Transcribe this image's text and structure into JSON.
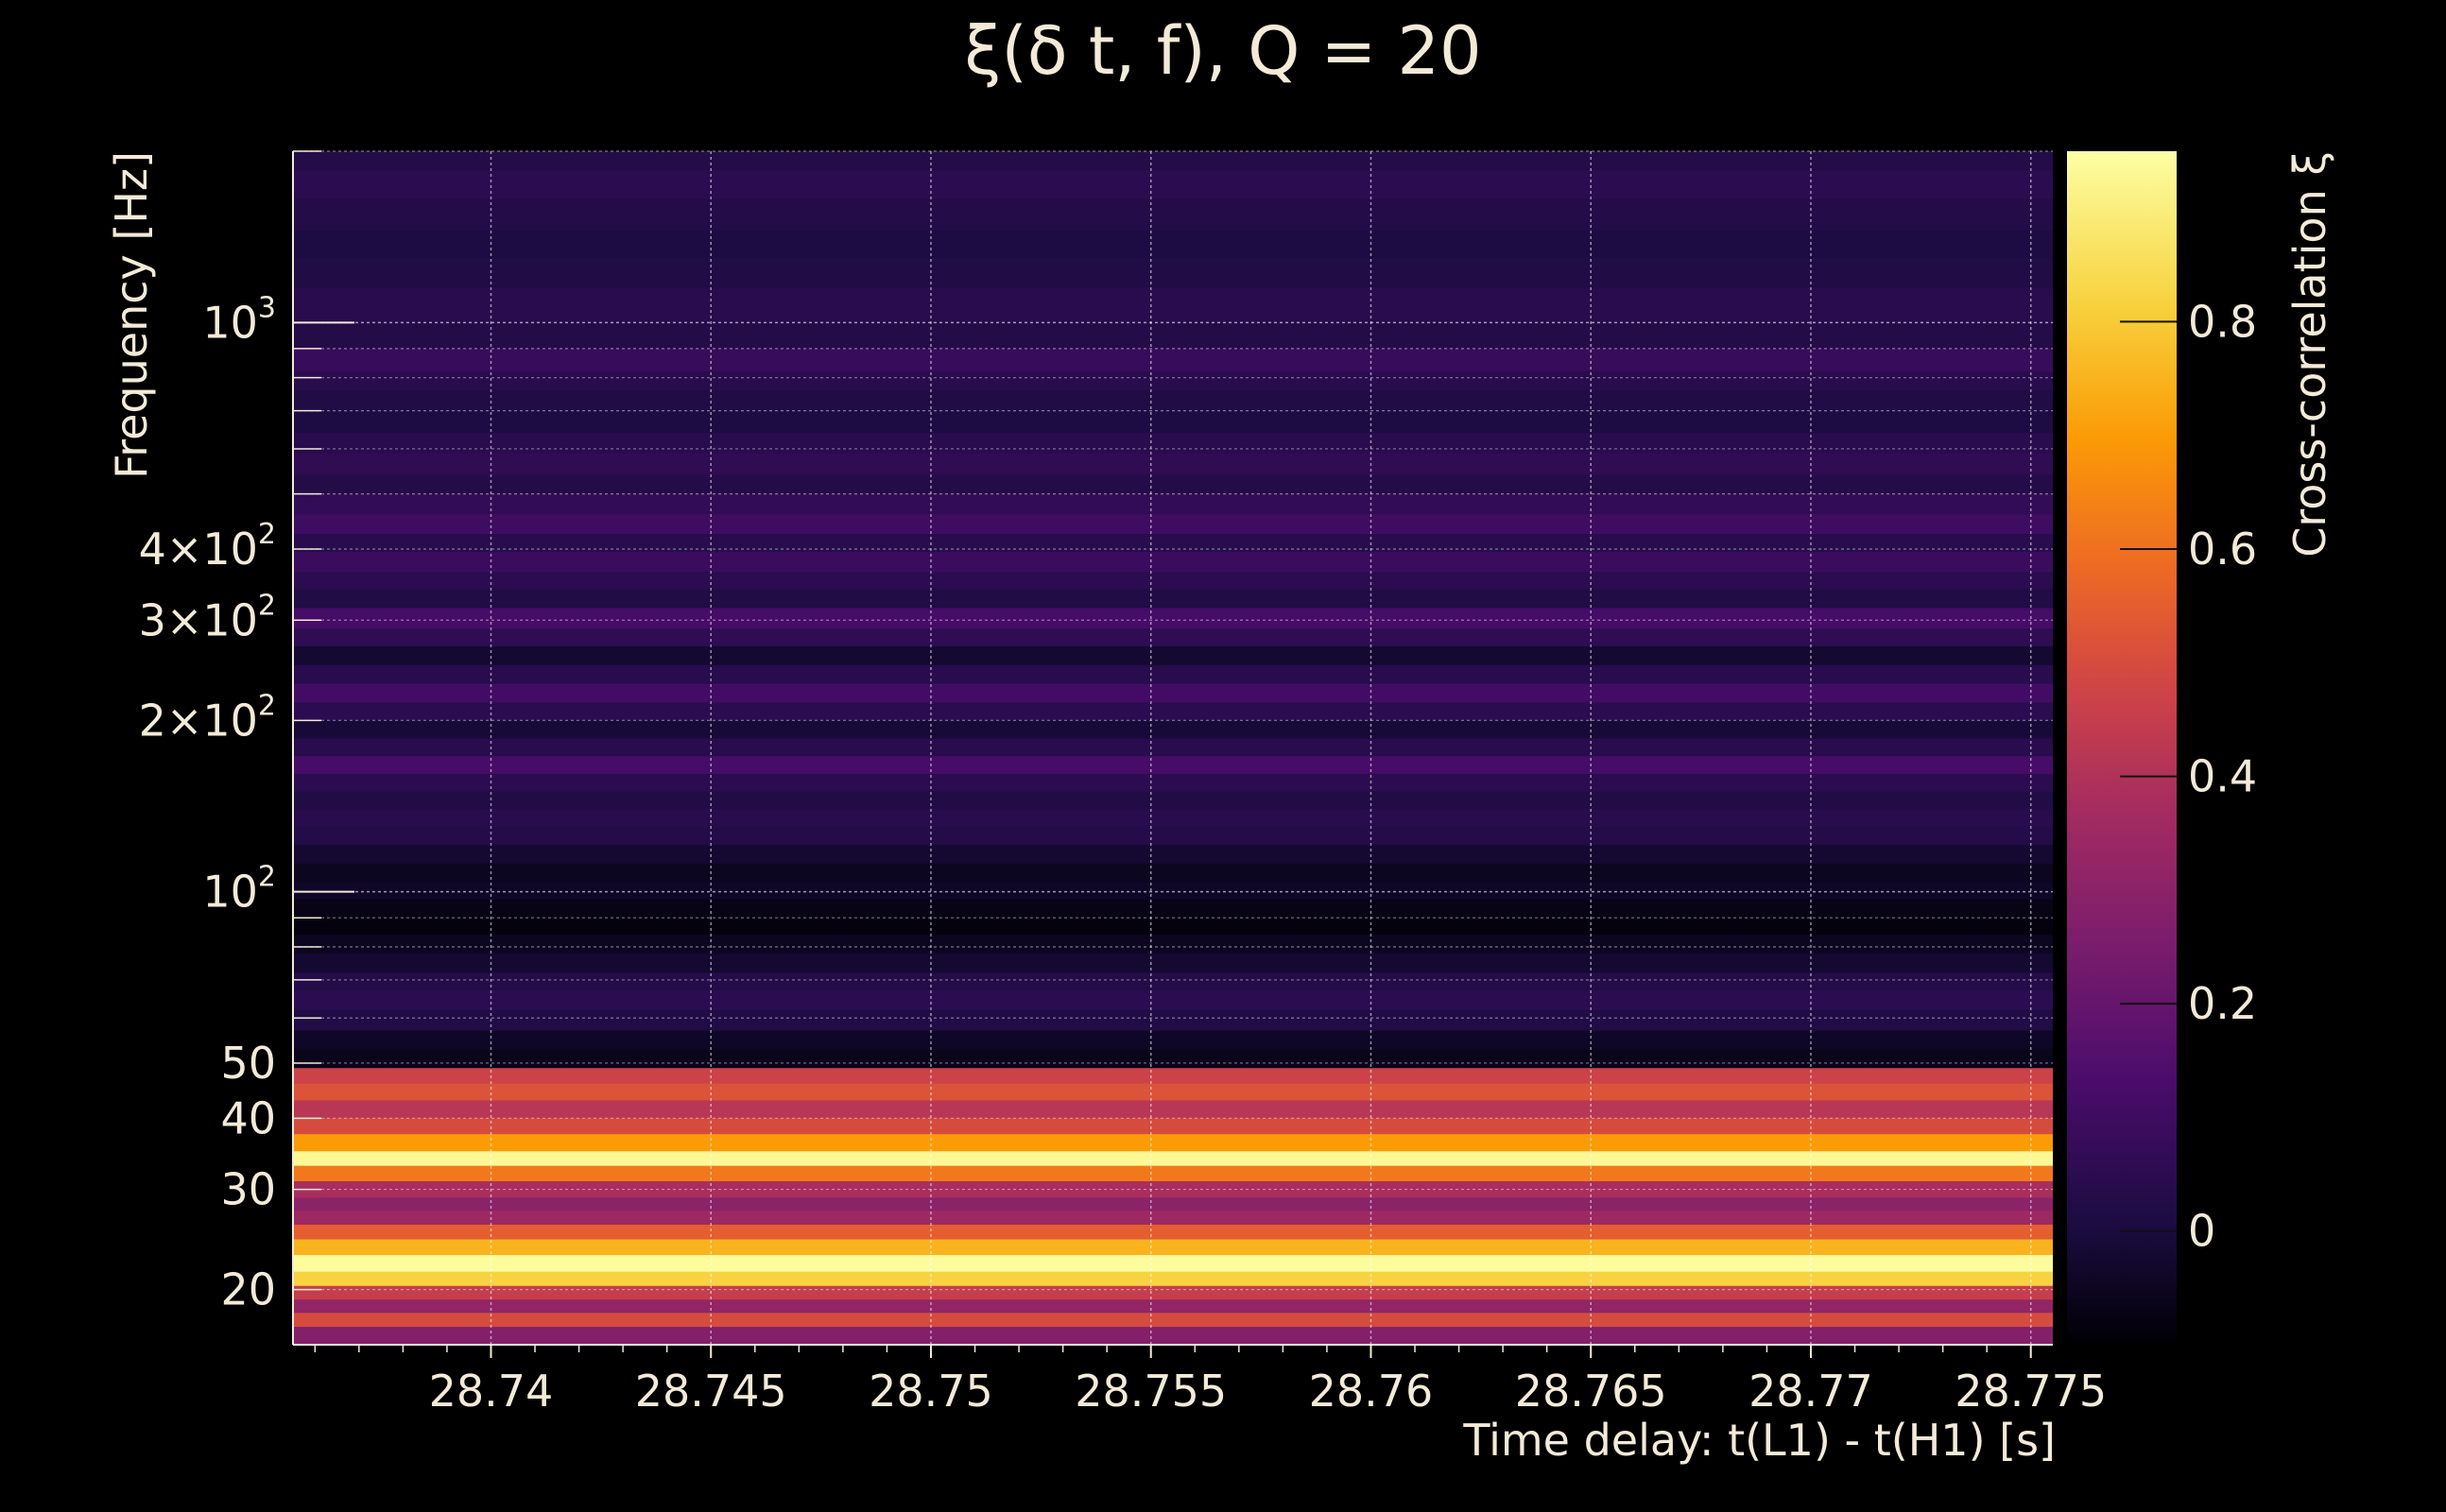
{
  "chart_data": {
    "type": "heatmap",
    "title": "ξ(δ t, f), Q = 20",
    "xlabel": "Time delay: t(L1) - t(H1) [s]",
    "ylabel": "Frequency [Hz]",
    "x_ticks": [
      28.74,
      28.745,
      28.75,
      28.755,
      28.76,
      28.765,
      28.77,
      28.775
    ],
    "x_tick_labels": [
      "28.74",
      "28.745",
      "28.75",
      "28.755",
      "28.76",
      "28.765",
      "28.77",
      "28.775"
    ],
    "xlim": [
      28.7355,
      28.7755
    ],
    "y_scale": "log",
    "ylim": [
      16,
      2000
    ],
    "y_ticks": [
      {
        "value": 1000,
        "base": "10",
        "exp": "3"
      },
      {
        "value": 400,
        "base": "4×10",
        "exp": "2"
      },
      {
        "value": 300,
        "base": "3×10",
        "exp": "2"
      },
      {
        "value": 200,
        "base": "2×10",
        "exp": "2"
      },
      {
        "value": 100,
        "base": "10",
        "exp": "2"
      },
      {
        "value": 50,
        "base": "50",
        "exp": ""
      },
      {
        "value": 40,
        "base": "40",
        "exp": ""
      },
      {
        "value": 30,
        "base": "30",
        "exp": ""
      },
      {
        "value": 20,
        "base": "20",
        "exp": ""
      }
    ],
    "colorbar": {
      "label": "Cross-correlation ξ",
      "range": [
        -0.1,
        0.95
      ],
      "ticks": [
        0,
        0.2,
        0.4,
        0.6,
        0.8
      ],
      "tick_labels": [
        "0",
        "0.2",
        "0.4",
        "0.6",
        "0.8"
      ],
      "colormap": "inferno-like"
    },
    "grid": true,
    "bands": [
      {
        "f_low": 1850,
        "f_high": 2000,
        "value": 0.03
      },
      {
        "f_low": 1650,
        "f_high": 1850,
        "value": 0.05
      },
      {
        "f_low": 1450,
        "f_high": 1650,
        "value": 0.03
      },
      {
        "f_low": 1300,
        "f_high": 1450,
        "value": 0.01
      },
      {
        "f_low": 1150,
        "f_high": 1300,
        "value": 0.02
      },
      {
        "f_low": 1000,
        "f_high": 1150,
        "value": 0.04
      },
      {
        "f_low": 900,
        "f_high": 1000,
        "value": 0.03
      },
      {
        "f_low": 820,
        "f_high": 900,
        "value": 0.08
      },
      {
        "f_low": 760,
        "f_high": 820,
        "value": 0.04
      },
      {
        "f_low": 700,
        "f_high": 760,
        "value": 0.02
      },
      {
        "f_low": 640,
        "f_high": 700,
        "value": 0.01
      },
      {
        "f_low": 590,
        "f_high": 640,
        "value": 0.04
      },
      {
        "f_low": 540,
        "f_high": 590,
        "value": 0.06
      },
      {
        "f_low": 500,
        "f_high": 540,
        "value": 0.03
      },
      {
        "f_low": 460,
        "f_high": 500,
        "value": 0.07
      },
      {
        "f_low": 425,
        "f_high": 460,
        "value": 0.1
      },
      {
        "f_low": 395,
        "f_high": 425,
        "value": 0.04
      },
      {
        "f_low": 365,
        "f_high": 395,
        "value": 0.09
      },
      {
        "f_low": 340,
        "f_high": 365,
        "value": 0.05
      },
      {
        "f_low": 315,
        "f_high": 340,
        "value": 0.02
      },
      {
        "f_low": 290,
        "f_high": 315,
        "value": 0.12
      },
      {
        "f_low": 270,
        "f_high": 290,
        "value": 0.06
      },
      {
        "f_low": 250,
        "f_high": 270,
        "value": -0.02
      },
      {
        "f_low": 232,
        "f_high": 250,
        "value": 0.04
      },
      {
        "f_low": 215,
        "f_high": 232,
        "value": 0.11
      },
      {
        "f_low": 200,
        "f_high": 215,
        "value": 0.05
      },
      {
        "f_low": 186,
        "f_high": 200,
        "value": -0.01
      },
      {
        "f_low": 173,
        "f_high": 186,
        "value": 0.04
      },
      {
        "f_low": 161,
        "f_high": 173,
        "value": 0.12
      },
      {
        "f_low": 150,
        "f_high": 161,
        "value": 0.05
      },
      {
        "f_low": 140,
        "f_high": 150,
        "value": 0.02
      },
      {
        "f_low": 130,
        "f_high": 140,
        "value": 0.04
      },
      {
        "f_low": 121,
        "f_high": 130,
        "value": 0.03
      },
      {
        "f_low": 112,
        "f_high": 121,
        "value": -0.02
      },
      {
        "f_low": 104,
        "f_high": 112,
        "value": -0.05
      },
      {
        "f_low": 97,
        "f_high": 104,
        "value": -0.04
      },
      {
        "f_low": 90,
        "f_high": 97,
        "value": -0.07
      },
      {
        "f_low": 84,
        "f_high": 90,
        "value": -0.08
      },
      {
        "f_low": 78,
        "f_high": 84,
        "value": -0.05
      },
      {
        "f_low": 72,
        "f_high": 78,
        "value": -0.02
      },
      {
        "f_low": 67,
        "f_high": 72,
        "value": 0.03
      },
      {
        "f_low": 62,
        "f_high": 67,
        "value": 0.05
      },
      {
        "f_low": 57,
        "f_high": 62,
        "value": 0.02
      },
      {
        "f_low": 53,
        "f_high": 57,
        "value": -0.04
      },
      {
        "f_low": 49,
        "f_high": 53,
        "value": -0.06
      },
      {
        "f_low": 46,
        "f_high": 49,
        "value": 0.47
      },
      {
        "f_low": 43,
        "f_high": 46,
        "value": 0.52
      },
      {
        "f_low": 40,
        "f_high": 43,
        "value": 0.42
      },
      {
        "f_low": 37.5,
        "f_high": 40,
        "value": 0.5
      },
      {
        "f_low": 35,
        "f_high": 37.5,
        "value": 0.7
      },
      {
        "f_low": 33,
        "f_high": 35,
        "value": 0.93
      },
      {
        "f_low": 31,
        "f_high": 33,
        "value": 0.62
      },
      {
        "f_low": 29,
        "f_high": 31,
        "value": 0.38
      },
      {
        "f_low": 27.5,
        "f_high": 29,
        "value": 0.3
      },
      {
        "f_low": 26,
        "f_high": 27.5,
        "value": 0.35
      },
      {
        "f_low": 24.5,
        "f_high": 26,
        "value": 0.55
      },
      {
        "f_low": 23,
        "f_high": 24.5,
        "value": 0.75
      },
      {
        "f_low": 21.5,
        "f_high": 23,
        "value": 0.94
      },
      {
        "f_low": 20.3,
        "f_high": 21.5,
        "value": 0.82
      },
      {
        "f_low": 19.2,
        "f_high": 20.3,
        "value": 0.45
      },
      {
        "f_low": 18.2,
        "f_high": 19.2,
        "value": 0.32
      },
      {
        "f_low": 17.2,
        "f_high": 18.2,
        "value": 0.5
      },
      {
        "f_low": 16,
        "f_high": 17.2,
        "value": 0.28
      }
    ]
  }
}
